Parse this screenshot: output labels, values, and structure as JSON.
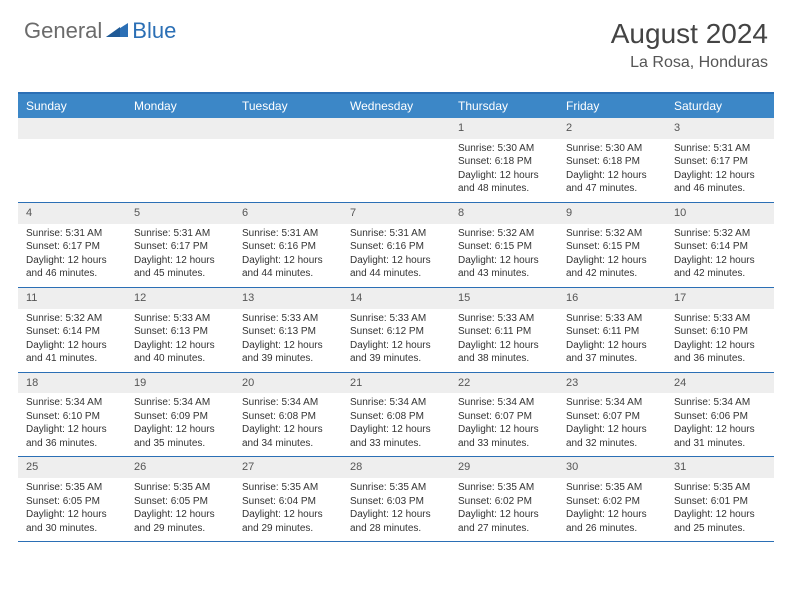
{
  "logo": {
    "general": "General",
    "blue": "Blue"
  },
  "title": "August 2024",
  "location": "La Rosa, Honduras",
  "colors": {
    "header_bg": "#3c87c7",
    "border": "#2b6fb5",
    "daynum_bg": "#eeeeee",
    "text": "#333333",
    "title_text": "#444444"
  },
  "day_labels": [
    "Sunday",
    "Monday",
    "Tuesday",
    "Wednesday",
    "Thursday",
    "Friday",
    "Saturday"
  ],
  "weeks": [
    [
      {
        "num": "",
        "sunrise": "",
        "sunset": "",
        "daylight": ""
      },
      {
        "num": "",
        "sunrise": "",
        "sunset": "",
        "daylight": ""
      },
      {
        "num": "",
        "sunrise": "",
        "sunset": "",
        "daylight": ""
      },
      {
        "num": "",
        "sunrise": "",
        "sunset": "",
        "daylight": ""
      },
      {
        "num": "1",
        "sunrise": "Sunrise: 5:30 AM",
        "sunset": "Sunset: 6:18 PM",
        "daylight": "Daylight: 12 hours and 48 minutes."
      },
      {
        "num": "2",
        "sunrise": "Sunrise: 5:30 AM",
        "sunset": "Sunset: 6:18 PM",
        "daylight": "Daylight: 12 hours and 47 minutes."
      },
      {
        "num": "3",
        "sunrise": "Sunrise: 5:31 AM",
        "sunset": "Sunset: 6:17 PM",
        "daylight": "Daylight: 12 hours and 46 minutes."
      }
    ],
    [
      {
        "num": "4",
        "sunrise": "Sunrise: 5:31 AM",
        "sunset": "Sunset: 6:17 PM",
        "daylight": "Daylight: 12 hours and 46 minutes."
      },
      {
        "num": "5",
        "sunrise": "Sunrise: 5:31 AM",
        "sunset": "Sunset: 6:17 PM",
        "daylight": "Daylight: 12 hours and 45 minutes."
      },
      {
        "num": "6",
        "sunrise": "Sunrise: 5:31 AM",
        "sunset": "Sunset: 6:16 PM",
        "daylight": "Daylight: 12 hours and 44 minutes."
      },
      {
        "num": "7",
        "sunrise": "Sunrise: 5:31 AM",
        "sunset": "Sunset: 6:16 PM",
        "daylight": "Daylight: 12 hours and 44 minutes."
      },
      {
        "num": "8",
        "sunrise": "Sunrise: 5:32 AM",
        "sunset": "Sunset: 6:15 PM",
        "daylight": "Daylight: 12 hours and 43 minutes."
      },
      {
        "num": "9",
        "sunrise": "Sunrise: 5:32 AM",
        "sunset": "Sunset: 6:15 PM",
        "daylight": "Daylight: 12 hours and 42 minutes."
      },
      {
        "num": "10",
        "sunrise": "Sunrise: 5:32 AM",
        "sunset": "Sunset: 6:14 PM",
        "daylight": "Daylight: 12 hours and 42 minutes."
      }
    ],
    [
      {
        "num": "11",
        "sunrise": "Sunrise: 5:32 AM",
        "sunset": "Sunset: 6:14 PM",
        "daylight": "Daylight: 12 hours and 41 minutes."
      },
      {
        "num": "12",
        "sunrise": "Sunrise: 5:33 AM",
        "sunset": "Sunset: 6:13 PM",
        "daylight": "Daylight: 12 hours and 40 minutes."
      },
      {
        "num": "13",
        "sunrise": "Sunrise: 5:33 AM",
        "sunset": "Sunset: 6:13 PM",
        "daylight": "Daylight: 12 hours and 39 minutes."
      },
      {
        "num": "14",
        "sunrise": "Sunrise: 5:33 AM",
        "sunset": "Sunset: 6:12 PM",
        "daylight": "Daylight: 12 hours and 39 minutes."
      },
      {
        "num": "15",
        "sunrise": "Sunrise: 5:33 AM",
        "sunset": "Sunset: 6:11 PM",
        "daylight": "Daylight: 12 hours and 38 minutes."
      },
      {
        "num": "16",
        "sunrise": "Sunrise: 5:33 AM",
        "sunset": "Sunset: 6:11 PM",
        "daylight": "Daylight: 12 hours and 37 minutes."
      },
      {
        "num": "17",
        "sunrise": "Sunrise: 5:33 AM",
        "sunset": "Sunset: 6:10 PM",
        "daylight": "Daylight: 12 hours and 36 minutes."
      }
    ],
    [
      {
        "num": "18",
        "sunrise": "Sunrise: 5:34 AM",
        "sunset": "Sunset: 6:10 PM",
        "daylight": "Daylight: 12 hours and 36 minutes."
      },
      {
        "num": "19",
        "sunrise": "Sunrise: 5:34 AM",
        "sunset": "Sunset: 6:09 PM",
        "daylight": "Daylight: 12 hours and 35 minutes."
      },
      {
        "num": "20",
        "sunrise": "Sunrise: 5:34 AM",
        "sunset": "Sunset: 6:08 PM",
        "daylight": "Daylight: 12 hours and 34 minutes."
      },
      {
        "num": "21",
        "sunrise": "Sunrise: 5:34 AM",
        "sunset": "Sunset: 6:08 PM",
        "daylight": "Daylight: 12 hours and 33 minutes."
      },
      {
        "num": "22",
        "sunrise": "Sunrise: 5:34 AM",
        "sunset": "Sunset: 6:07 PM",
        "daylight": "Daylight: 12 hours and 33 minutes."
      },
      {
        "num": "23",
        "sunrise": "Sunrise: 5:34 AM",
        "sunset": "Sunset: 6:07 PM",
        "daylight": "Daylight: 12 hours and 32 minutes."
      },
      {
        "num": "24",
        "sunrise": "Sunrise: 5:34 AM",
        "sunset": "Sunset: 6:06 PM",
        "daylight": "Daylight: 12 hours and 31 minutes."
      }
    ],
    [
      {
        "num": "25",
        "sunrise": "Sunrise: 5:35 AM",
        "sunset": "Sunset: 6:05 PM",
        "daylight": "Daylight: 12 hours and 30 minutes."
      },
      {
        "num": "26",
        "sunrise": "Sunrise: 5:35 AM",
        "sunset": "Sunset: 6:05 PM",
        "daylight": "Daylight: 12 hours and 29 minutes."
      },
      {
        "num": "27",
        "sunrise": "Sunrise: 5:35 AM",
        "sunset": "Sunset: 6:04 PM",
        "daylight": "Daylight: 12 hours and 29 minutes."
      },
      {
        "num": "28",
        "sunrise": "Sunrise: 5:35 AM",
        "sunset": "Sunset: 6:03 PM",
        "daylight": "Daylight: 12 hours and 28 minutes."
      },
      {
        "num": "29",
        "sunrise": "Sunrise: 5:35 AM",
        "sunset": "Sunset: 6:02 PM",
        "daylight": "Daylight: 12 hours and 27 minutes."
      },
      {
        "num": "30",
        "sunrise": "Sunrise: 5:35 AM",
        "sunset": "Sunset: 6:02 PM",
        "daylight": "Daylight: 12 hours and 26 minutes."
      },
      {
        "num": "31",
        "sunrise": "Sunrise: 5:35 AM",
        "sunset": "Sunset: 6:01 PM",
        "daylight": "Daylight: 12 hours and 25 minutes."
      }
    ]
  ]
}
